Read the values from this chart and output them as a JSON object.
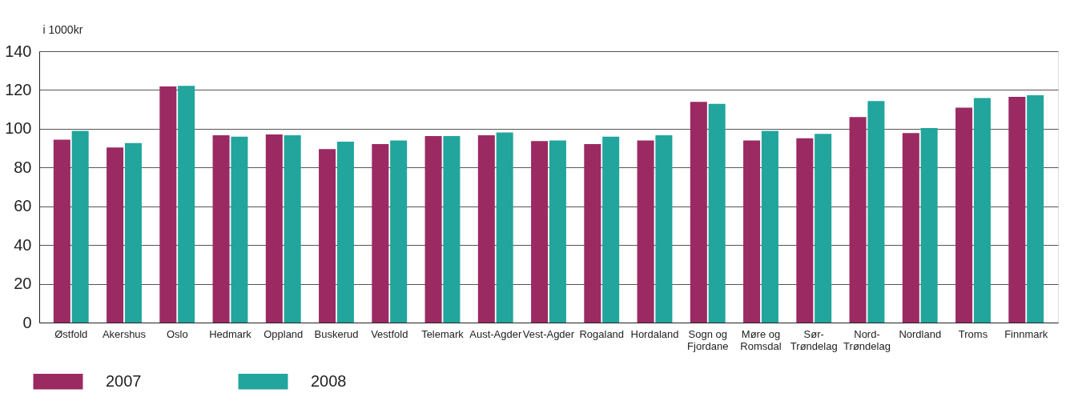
{
  "chart_data": {
    "type": "bar",
    "ylabel": "i 1000kr",
    "categories": [
      "Østfold",
      "Akershus",
      "Oslo",
      "Hedmark",
      "Oppland",
      "Buskerud",
      "Vestfold",
      "Telemark",
      "Aust-Agder",
      "Vest-Agder",
      "Rogaland",
      "Hordaland",
      "Sogn og\nFjordane",
      "Møre og\nRomsdal",
      "Sør-\nTrøndelag",
      "Nord-\nTrøndelag",
      "Nordland",
      "Troms",
      "Finnmark"
    ],
    "series": [
      {
        "name": "2007",
        "color": "#9b2a63",
        "values": [
          94.4,
          90.3,
          121.8,
          96.6,
          97.0,
          89.5,
          92.1,
          96.2,
          96.6,
          93.6,
          92.1,
          94.0,
          113.9,
          94.0,
          95.1,
          106.0,
          97.8,
          110.9,
          116.5
        ]
      },
      {
        "name": "2008",
        "color": "#21a59c",
        "values": [
          98.9,
          92.6,
          122.1,
          95.9,
          96.6,
          93.3,
          94.0,
          96.2,
          98.1,
          94.0,
          95.9,
          96.6,
          112.8,
          98.9,
          97.4,
          114.3,
          100.4,
          115.8,
          117.3
        ]
      }
    ],
    "ylim": [
      0,
      140
    ],
    "yticks": [
      0,
      20,
      40,
      60,
      80,
      100,
      120,
      140
    ],
    "grid": "y",
    "legend": "bottom left"
  }
}
